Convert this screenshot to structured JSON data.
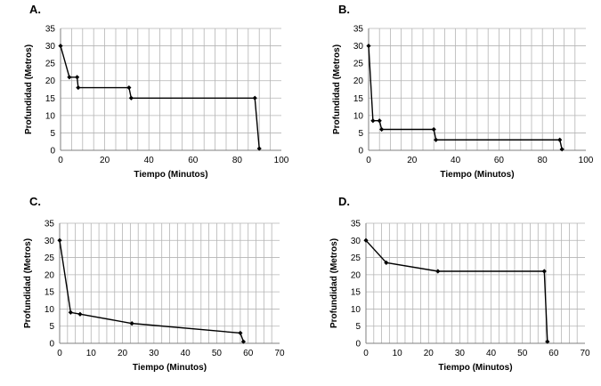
{
  "chart_data": [
    {
      "type": "line",
      "panel_label": "A.",
      "xlabel": "Tiempo (Minutos)",
      "ylabel": "Profundidad (Metros)",
      "xlim": [
        0,
        100
      ],
      "ylim": [
        0,
        35
      ],
      "xticks": [
        0,
        20,
        40,
        60,
        80,
        100
      ],
      "yticks": [
        0,
        5,
        10,
        15,
        20,
        25,
        30,
        35
      ],
      "grid": true,
      "series": [
        {
          "x": [
            0,
            4,
            7.5,
            8,
            31,
            32,
            88,
            90
          ],
          "y": [
            30,
            21,
            21,
            18,
            18,
            15,
            15,
            0.5
          ]
        }
      ]
    },
    {
      "type": "line",
      "panel_label": "B.",
      "xlabel": "Tiempo (Minutos)",
      "ylabel": "Profundidad (Metros)",
      "xlim": [
        0,
        100
      ],
      "ylim": [
        0,
        35
      ],
      "xticks": [
        0,
        20,
        40,
        60,
        80,
        100
      ],
      "yticks": [
        0,
        5,
        10,
        15,
        20,
        25,
        30,
        35
      ],
      "grid": true,
      "series": [
        {
          "x": [
            0,
            2,
            5,
            6,
            30,
            31,
            88,
            89
          ],
          "y": [
            30,
            8.5,
            8.5,
            6,
            6,
            3,
            3,
            0.3
          ]
        }
      ]
    },
    {
      "type": "line",
      "panel_label": "C.",
      "xlabel": "Tiempo (Minutos)",
      "ylabel": "Profundidad (Metros)",
      "xlim": [
        0,
        70
      ],
      "ylim": [
        0,
        35
      ],
      "xticks": [
        0,
        10,
        20,
        30,
        40,
        50,
        60,
        70
      ],
      "yticks": [
        0,
        5,
        10,
        15,
        20,
        25,
        30,
        35
      ],
      "grid": true,
      "series": [
        {
          "x": [
            0,
            3.5,
            6.5,
            23,
            57.5,
            58.5
          ],
          "y": [
            30,
            9,
            8.5,
            5.8,
            3,
            0.5
          ]
        }
      ]
    },
    {
      "type": "line",
      "panel_label": "D.",
      "xlabel": "Tiempo (Minutos)",
      "ylabel": "Profundidad (Metros)",
      "xlim": [
        0,
        70
      ],
      "ylim": [
        0,
        35
      ],
      "xticks": [
        0,
        10,
        20,
        30,
        40,
        50,
        60,
        70
      ],
      "yticks": [
        0,
        5,
        10,
        15,
        20,
        25,
        30,
        35
      ],
      "grid": true,
      "series": [
        {
          "x": [
            0,
            6.5,
            23,
            57,
            58
          ],
          "y": [
            30,
            23.5,
            21,
            21,
            0.5
          ]
        }
      ]
    }
  ]
}
